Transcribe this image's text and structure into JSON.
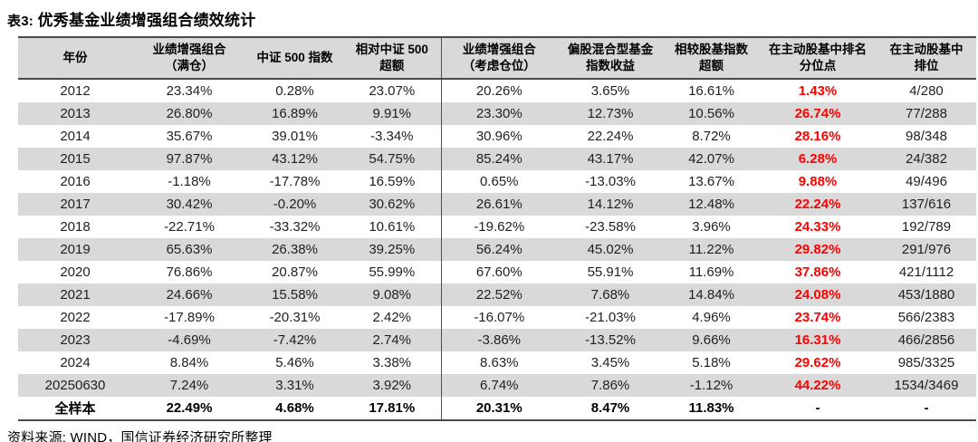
{
  "title": {
    "prefix": "表3:",
    "text": "优秀基金业绩增强组合绩效统计"
  },
  "source_note": "资料来源: WIND，国信证券经济研究所整理",
  "colors": {
    "accent_red": "#ff0000",
    "stripe_gray": "#d9d9d9",
    "header_gray": "#d9d9d9",
    "border_dark": "#4a4a4a"
  },
  "table": {
    "columns": [
      {
        "id": "year",
        "lines": [
          "年份"
        ]
      },
      {
        "id": "enhanced-full-position",
        "lines": [
          "业绩增强组合",
          "（满仓）"
        ]
      },
      {
        "id": "csi500-index",
        "lines": [
          "中证 500 指数"
        ]
      },
      {
        "id": "excess-vs-csi500",
        "lines": [
          "相对中证 500",
          "超额"
        ]
      },
      {
        "id": "enhanced-with-position",
        "lines": [
          "业绩增强组合",
          "（考虑仓位）"
        ]
      },
      {
        "id": "hybrid-equity-fund-index",
        "lines": [
          "偏股混合型基金",
          "指数收益"
        ]
      },
      {
        "id": "excess-vs-fund-index",
        "lines": [
          "相较股基指数",
          "超额"
        ]
      },
      {
        "id": "active-fund-rank-percentile",
        "lines": [
          "在主动股基中排名",
          "分位点"
        ]
      },
      {
        "id": "active-fund-rank",
        "lines": [
          "在主动股基中",
          "排位"
        ]
      }
    ],
    "rows": [
      {
        "year": "2012",
        "values": [
          "23.34%",
          "0.28%",
          "23.07%",
          "20.26%",
          "3.65%",
          "16.61%",
          "1.43%",
          "4/280"
        ]
      },
      {
        "year": "2013",
        "values": [
          "26.80%",
          "16.89%",
          "9.91%",
          "23.30%",
          "12.73%",
          "10.56%",
          "26.74%",
          "77/288"
        ]
      },
      {
        "year": "2014",
        "values": [
          "35.67%",
          "39.01%",
          "-3.34%",
          "30.96%",
          "22.24%",
          "8.72%",
          "28.16%",
          "98/348"
        ]
      },
      {
        "year": "2015",
        "values": [
          "97.87%",
          "43.12%",
          "54.75%",
          "85.24%",
          "43.17%",
          "42.07%",
          "6.28%",
          "24/382"
        ]
      },
      {
        "year": "2016",
        "values": [
          "-1.18%",
          "-17.78%",
          "16.59%",
          "0.65%",
          "-13.03%",
          "13.67%",
          "9.88%",
          "49/496"
        ]
      },
      {
        "year": "2017",
        "values": [
          "30.42%",
          "-0.20%",
          "30.62%",
          "26.61%",
          "14.12%",
          "12.48%",
          "22.24%",
          "137/616"
        ]
      },
      {
        "year": "2018",
        "values": [
          "-22.71%",
          "-33.32%",
          "10.61%",
          "-19.62%",
          "-23.58%",
          "3.96%",
          "24.33%",
          "192/789"
        ]
      },
      {
        "year": "2019",
        "values": [
          "65.63%",
          "26.38%",
          "39.25%",
          "56.24%",
          "45.02%",
          "11.22%",
          "29.82%",
          "291/976"
        ]
      },
      {
        "year": "2020",
        "values": [
          "76.86%",
          "20.87%",
          "55.99%",
          "67.60%",
          "55.91%",
          "11.69%",
          "37.86%",
          "421/1112"
        ]
      },
      {
        "year": "2021",
        "values": [
          "24.66%",
          "15.58%",
          "9.08%",
          "22.52%",
          "7.68%",
          "14.84%",
          "24.08%",
          "453/1880"
        ]
      },
      {
        "year": "2022",
        "values": [
          "-17.89%",
          "-20.31%",
          "2.42%",
          "-16.07%",
          "-21.03%",
          "4.96%",
          "23.74%",
          "566/2383"
        ]
      },
      {
        "year": "2023",
        "values": [
          "-4.69%",
          "-7.42%",
          "2.74%",
          "-3.86%",
          "-13.52%",
          "9.66%",
          "16.31%",
          "466/2856"
        ]
      },
      {
        "year": "2024",
        "values": [
          "8.84%",
          "5.46%",
          "3.38%",
          "8.63%",
          "3.45%",
          "5.18%",
          "29.62%",
          "985/3325"
        ]
      },
      {
        "year": "20250630",
        "values": [
          "7.24%",
          "3.31%",
          "3.92%",
          "6.74%",
          "7.86%",
          "-1.12%",
          "44.22%",
          "1534/3469"
        ]
      },
      {
        "year": "全样本",
        "values": [
          "22.49%",
          "4.68%",
          "17.81%",
          "20.31%",
          "8.47%",
          "11.83%",
          "-",
          "-"
        ],
        "is_total": true
      }
    ]
  }
}
